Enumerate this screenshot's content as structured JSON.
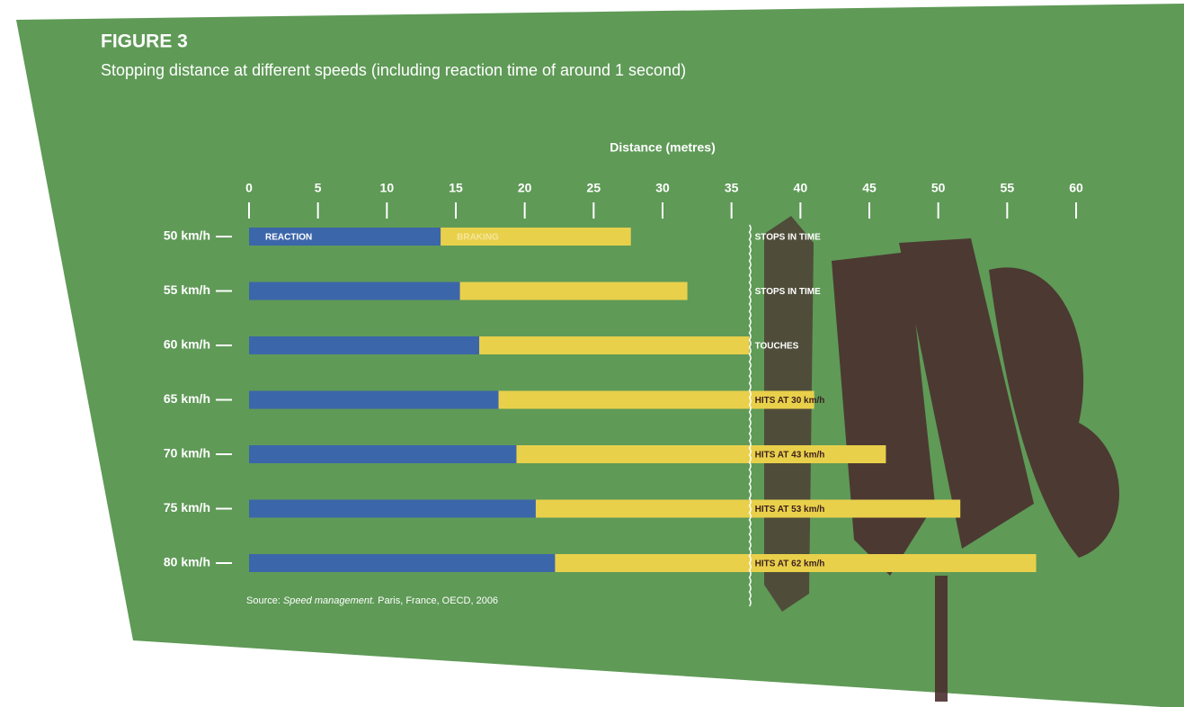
{
  "chart_data": {
    "type": "stacked_barh",
    "figure_label": "FIGURE 3",
    "title": "Stopping distance at different speeds (including reaction time of around 1 second)",
    "x_label": "Distance (metres)",
    "categories": [
      "50 km/h",
      "55 km/h",
      "60 km/h",
      "65 km/h",
      "70 km/h",
      "75 km/h",
      "80 km/h"
    ],
    "series": [
      {
        "name": "REACTION",
        "color": "#3c66aa",
        "values": [
          13.9,
          15.3,
          16.7,
          18.1,
          19.4,
          20.8,
          22.2
        ]
      },
      {
        "name": "BRAKING",
        "color": "#e9d04b",
        "values": [
          13.8,
          16.5,
          19.6,
          22.9,
          26.8,
          30.8,
          34.9
        ]
      }
    ],
    "annotations": [
      "STOPS IN TIME",
      "STOPS IN TIME",
      "TOUCHES",
      "HITS AT 30 km/h",
      "HITS AT 43 km/h",
      "HITS AT 53 km/h",
      "HITS AT 62 km/h"
    ],
    "reference_line": 36.3,
    "xlim": [
      0,
      60
    ],
    "xticks": [
      0,
      5,
      10,
      15,
      20,
      25,
      30,
      35,
      40,
      45,
      50,
      55,
      60
    ],
    "source": {
      "prefix": "Source: ",
      "italic": "Speed management.",
      "rest": " Paris, France, OECD, 2006"
    }
  }
}
